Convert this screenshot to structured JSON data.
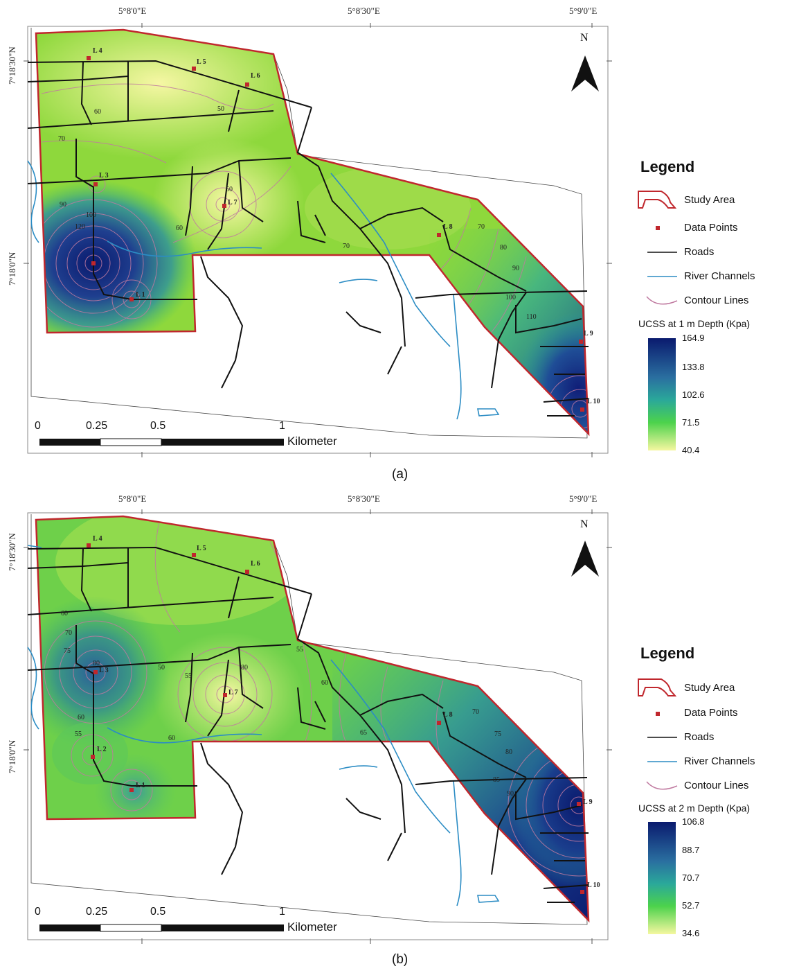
{
  "panels": [
    {
      "id": "a",
      "caption": "(a)",
      "coords": {
        "x1": "5°8'0\"E",
        "x2": "5°8'30\"E",
        "x3": "5°9'0\"E",
        "y1": "7°18'30\"N",
        "y2": "7°18'0\"N"
      },
      "north": "N",
      "legend": {
        "title": "Legend",
        "items": [
          "Study Area",
          "Data Points",
          "Roads",
          "River Channels",
          "Contour Lines"
        ],
        "ramp_title": "UCSS at 1 m Depth (Kpa)",
        "ramp_values": [
          "164.9",
          "133.8",
          "102.6",
          "71.5",
          "40.4"
        ]
      },
      "scale": {
        "ticks": [
          "0",
          "0.25",
          "0.5",
          "1"
        ],
        "unit": "Kilometer"
      },
      "points": [
        "L 1",
        "L 3",
        "L 4",
        "L 5",
        "L 6",
        "L 7",
        "L 8",
        "L 9",
        "L 10"
      ],
      "contours": [
        "60",
        "50",
        "70",
        "90",
        "100",
        "120",
        "50",
        "60",
        "70",
        "70",
        "80",
        "90",
        "100",
        "110"
      ]
    },
    {
      "id": "b",
      "caption": "(b)",
      "coords": {
        "x1": "5°8'0\"E",
        "x2": "5°8'30\"E",
        "x3": "5°9'0\"E",
        "y1": "7°18'30\"N",
        "y2": "7°18'0\"N"
      },
      "north": "N",
      "legend": {
        "title": "Legend",
        "items": [
          "Study Area",
          "Data Points",
          "Roads",
          "River Channels",
          "Contour Lines"
        ],
        "ramp_title": "UCSS at 2 m Depth (Kpa)",
        "ramp_values": [
          "106.8",
          "88.7",
          "70.7",
          "52.7",
          "34.6"
        ]
      },
      "scale": {
        "ticks": [
          "0",
          "0.25",
          "0.5",
          "1"
        ],
        "unit": "Kilometer"
      },
      "points": [
        "L 1",
        "L 2",
        "L 3",
        "L 4",
        "L 5",
        "L 6",
        "L 7",
        "L 8",
        "L 9",
        "L 10"
      ],
      "contours": [
        "60",
        "70",
        "75",
        "80",
        "60",
        "55",
        "50",
        "55",
        "60",
        "80",
        "55",
        "60",
        "65",
        "70",
        "75",
        "80",
        "85",
        "90"
      ]
    }
  ],
  "colors": {
    "study_area_outline": "#c0272d",
    "roads": "#111111",
    "rivers": "#2b8cc4",
    "contours": "#c07aa0",
    "ramp_high": "#0a1a6e",
    "ramp_mid": "#2aa89a",
    "ramp_green": "#4cd24c",
    "ramp_low": "#f5f7a0"
  },
  "icons": {
    "north_arrow": "north-arrow-icon",
    "data_point": "square-dot-icon"
  }
}
